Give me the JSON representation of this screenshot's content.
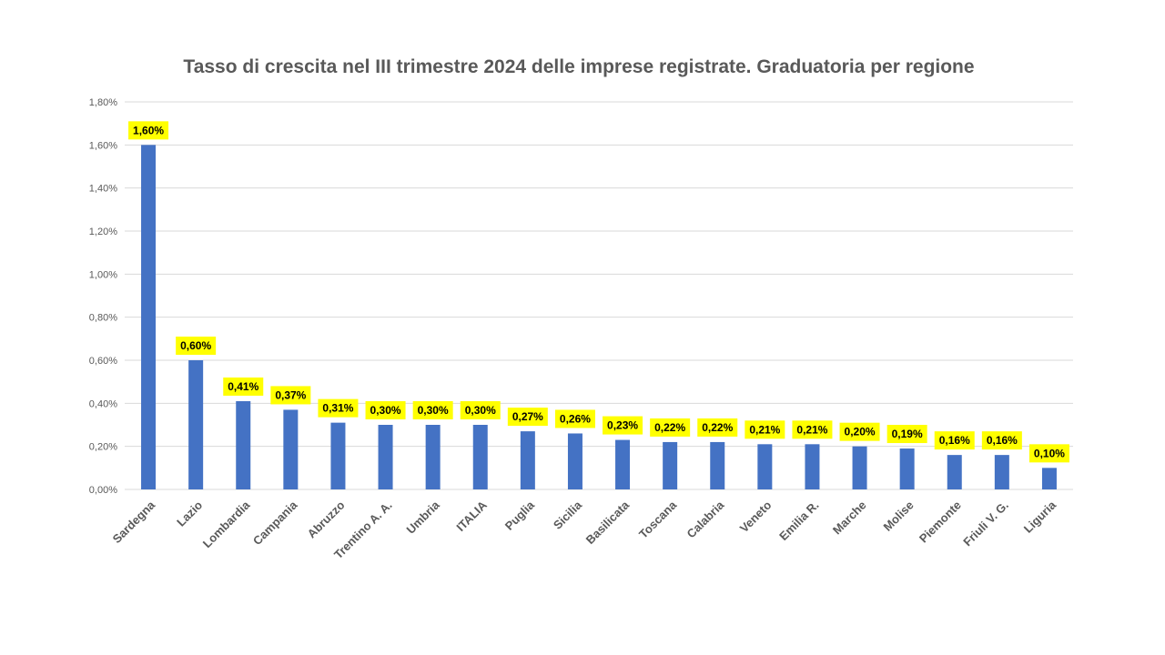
{
  "chart_data": {
    "type": "bar",
    "title": "Tasso di crescita nel III trimestre 2024 delle imprese registrate. Graduatoria per regione",
    "xlabel": "",
    "ylabel": "",
    "categories": [
      "Sardegna",
      "Lazio",
      "Lombardia",
      "Campania",
      "Abruzzo",
      "Trentino A. A.",
      "Umbria",
      "ITALIA",
      "Puglia",
      "Sicilia",
      "Basilicata",
      "Toscana",
      "Calabria",
      "Veneto",
      "Emilia R.",
      "Marche",
      "Molise",
      "Piemonte",
      "Friuli V. G.",
      "Liguria"
    ],
    "values": [
      1.6,
      0.6,
      0.41,
      0.37,
      0.31,
      0.3,
      0.3,
      0.3,
      0.27,
      0.26,
      0.23,
      0.22,
      0.22,
      0.21,
      0.21,
      0.2,
      0.19,
      0.16,
      0.16,
      0.1
    ],
    "data_labels": [
      "1,60%",
      "0,60%",
      "0,41%",
      "0,37%",
      "0,31%",
      "0,30%",
      "0,30%",
      "0,30%",
      "0,27%",
      "0,26%",
      "0,23%",
      "0,22%",
      "0,22%",
      "0,21%",
      "0,21%",
      "0,20%",
      "0,19%",
      "0,16%",
      "0,16%",
      "0,10%"
    ],
    "y_ticks": [
      0,
      0.2,
      0.4,
      0.6,
      0.8,
      1.0,
      1.2,
      1.4,
      1.6,
      1.8
    ],
    "y_tick_labels": [
      "0,00%",
      "0,20%",
      "0,40%",
      "0,60%",
      "0,80%",
      "1,00%",
      "1,20%",
      "1,40%",
      "1,60%",
      "1,80%"
    ],
    "ylim": [
      0,
      1.8
    ],
    "grid": true,
    "legend": "none",
    "colors": {
      "bar": "#4472C4",
      "label_bg": "#FFFF00",
      "grid": "#D9D9D9"
    }
  }
}
